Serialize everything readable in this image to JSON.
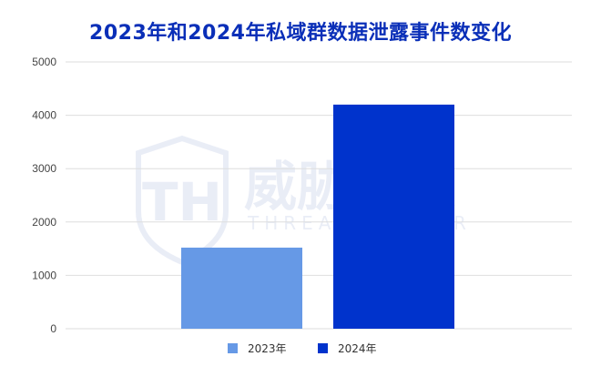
{
  "chart_data": {
    "type": "bar",
    "title": "2023年和2024年私域群数据泄露事件数变化",
    "xlabel": "",
    "ylabel": "",
    "ylim": [
      0,
      5000
    ],
    "yticks": [
      0,
      1000,
      2000,
      3000,
      4000,
      5000
    ],
    "grid": true,
    "legend_position": "bottom",
    "categories": [
      "2023年",
      "2024年"
    ],
    "values": [
      1520,
      4200
    ],
    "colors": [
      "#6699e6",
      "#0033cc"
    ]
  },
  "watermark": {
    "logo_text": "TH",
    "name": "威胁猎人",
    "subtitle": "THREAT HUNTER"
  }
}
